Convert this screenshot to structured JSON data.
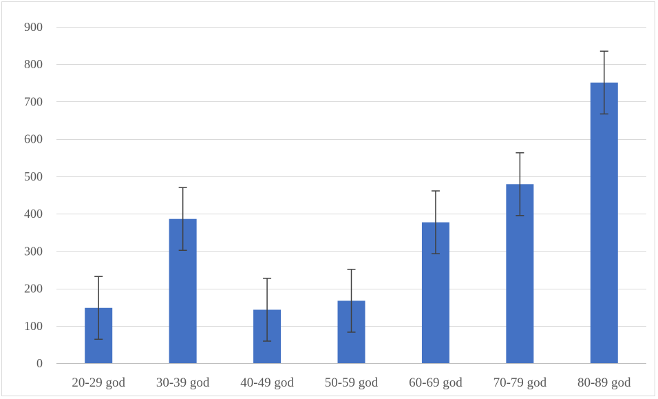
{
  "chart_data": {
    "type": "bar",
    "title": "",
    "xlabel": "",
    "ylabel": "",
    "categories": [
      "20-29 god",
      "30-39 god",
      "40-49 god",
      "50-59 god",
      "60-69 god",
      "70-79 god",
      "80-89 god"
    ],
    "values": [
      148,
      386,
      143,
      167,
      377,
      479,
      751
    ],
    "error": [
      84,
      84,
      84,
      84,
      84,
      84,
      84
    ],
    "ylim": [
      0,
      900
    ],
    "yticks": [
      0,
      100,
      200,
      300,
      400,
      500,
      600,
      700,
      800,
      900
    ],
    "grid": true,
    "legend": "none",
    "colors": {
      "bar": "#4472c4",
      "grid": "#d9d9d9",
      "errorbar": "#404040",
      "text": "#595959"
    }
  }
}
